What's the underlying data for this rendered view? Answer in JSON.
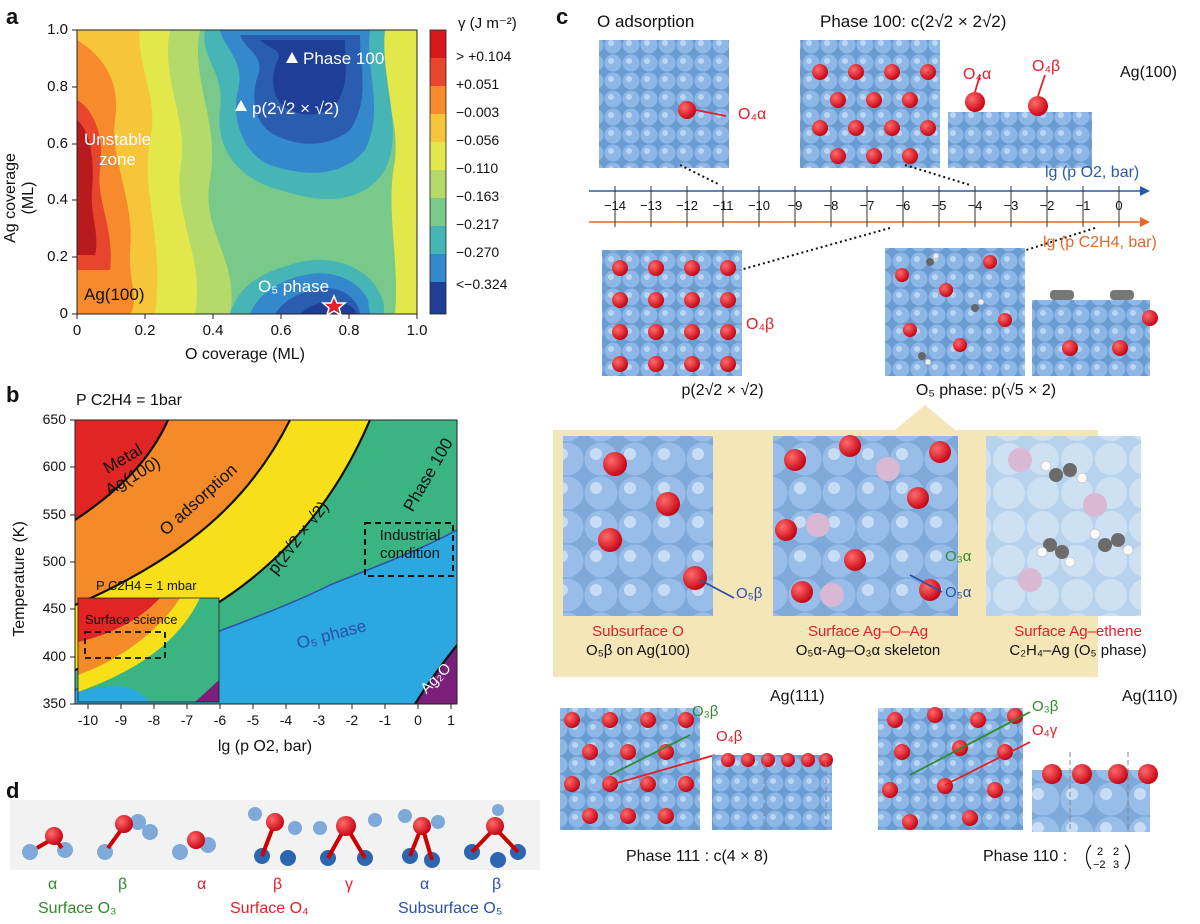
{
  "panels": {
    "a": "a",
    "b": "b",
    "c": "c",
    "d": "d"
  },
  "panel_a": {
    "xlabel": "O coverage (ML)",
    "ylabel": "Ag coverage (ML)",
    "xticks": [
      "0",
      "0.2",
      "0.4",
      "0.6",
      "0.8",
      "1.0"
    ],
    "yticks": [
      "0",
      "0.2",
      "0.4",
      "0.6",
      "0.8",
      "1.0"
    ],
    "colorbar_title": "γ (J m⁻²)",
    "colorbar_labels": [
      "> +0.104",
      "+0.051",
      "−0.003",
      "−0.056",
      "−0.110",
      "−0.163",
      "−0.217",
      "−0.270",
      "<−0.324"
    ],
    "colorbar_top": "+0.104",
    "colors": [
      "#d7191c",
      "#e8452d",
      "#f88a2e",
      "#f7c53a",
      "#e3e84a",
      "#b5da6a",
      "#78c98a",
      "#47b5b6",
      "#3488cc",
      "#2a5cb0",
      "#1f3f96"
    ],
    "annotations": {
      "phase100": "Phase 100",
      "p22": "p(2√2 × √2)",
      "unstable": "Unstable zone",
      "ag100": "Ag(100)",
      "o5": "O₅ phase"
    }
  },
  "panel_b": {
    "pressure_label": "P C2H4 = 1bar",
    "inset_pressure_label": "P C2H4 = 1 mbar",
    "xlabel": "lg (p O2, bar)",
    "ylabel": "Temperature (K)",
    "xticks": [
      "-10",
      "-9",
      "-8",
      "-7",
      "-6",
      "-5",
      "-4",
      "-3",
      "-2",
      "-1",
      "0",
      "1"
    ],
    "yticks": [
      "350",
      "400",
      "450",
      "500",
      "550",
      "600",
      "650"
    ],
    "regions": {
      "metal": "Metal Ag(100)",
      "oads": "O adsorption",
      "p22": "p(2√2 × √2)",
      "phase100": "Phase 100",
      "o5": "O₅ phase",
      "ag2o": "Ag₂O"
    },
    "industrial": "Industrial condition",
    "surface_science": "Surface science"
  },
  "panel_c": {
    "o_adsorption": "O adsorption",
    "phase100_title": "Phase 100: c(2√2 × 2√2)",
    "ag100": "Ag(100)",
    "o4a": "O₄α",
    "o4b": "O₄β",
    "axis_o2": "lg (p O2, bar)",
    "axis_c2h4": "lg (p C2H4, bar)",
    "axis_ticks": [
      "−14",
      "−13",
      "−12",
      "−11",
      "−10",
      "−9",
      "−8",
      "−7",
      "−6",
      "−5",
      "−4",
      "−3",
      "−2",
      "−1",
      "0"
    ],
    "p22_caption": "p(2√2 × √2)",
    "o5_caption": "O₅ phase: p(√5 × 2)",
    "sub_o": "Subsurface O",
    "sub_o2": "O₅β on Ag(100)",
    "surf_ag": "Surface Ag–O–Ag",
    "surf_ag2": "O₅α-Ag–O₃α skeleton",
    "surf_eth": "Surface Ag–ethene",
    "surf_eth2": "C₂H₄–Ag (O₅ phase)",
    "o5b": "O₅β",
    "o3a": "O₃α",
    "o5a": "O₅α",
    "ag111": "Ag(111)",
    "ag110": "Ag(110)",
    "o3b": "O₃β",
    "o4b_111": "O₄β",
    "o4g": "O₄γ",
    "phase111": "Phase 111 : c(4 × 8)",
    "phase110": "Phase 110 :"
  },
  "panel_d": {
    "greek": [
      "α",
      "β",
      "α",
      "β",
      "γ",
      "α",
      "β"
    ],
    "groups": [
      "Surface O₃",
      "Surface O₄",
      "Subsurface O₅"
    ]
  }
}
